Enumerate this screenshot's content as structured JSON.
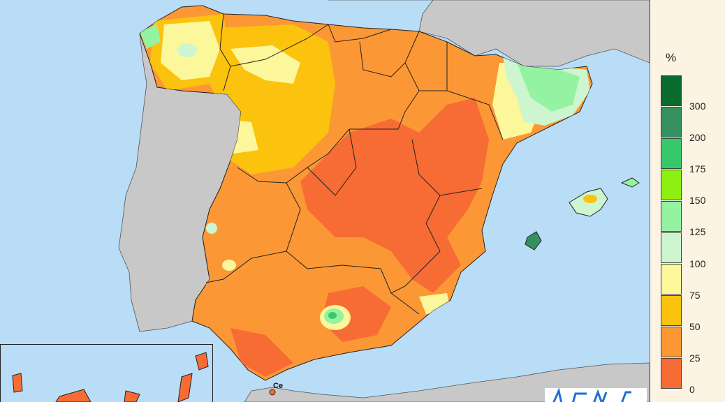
{
  "map": {
    "features": [
      "spain-precipitation-percent",
      "portugal",
      "france",
      "morocco",
      "balearic-islands",
      "canary-islands-inset"
    ],
    "labels": {
      "ceuta": "Ce"
    },
    "colors": {
      "sea": "#b9dcf7",
      "foreign_land": "#c8c8c8"
    }
  },
  "legend": {
    "unit": "%",
    "ticks": [
      "300",
      "200",
      "175",
      "150",
      "125",
      "100",
      "75",
      "50",
      "25",
      "0"
    ],
    "swatches": [
      "#0a6b2e",
      "#359060",
      "#36c96a",
      "#8ef010",
      "#93f3a1",
      "#cdf5cf",
      "#fbf79a",
      "#fbc20e",
      "#fb9835",
      "#f76b34"
    ]
  },
  "logo": {
    "name": "aemet-logo"
  }
}
